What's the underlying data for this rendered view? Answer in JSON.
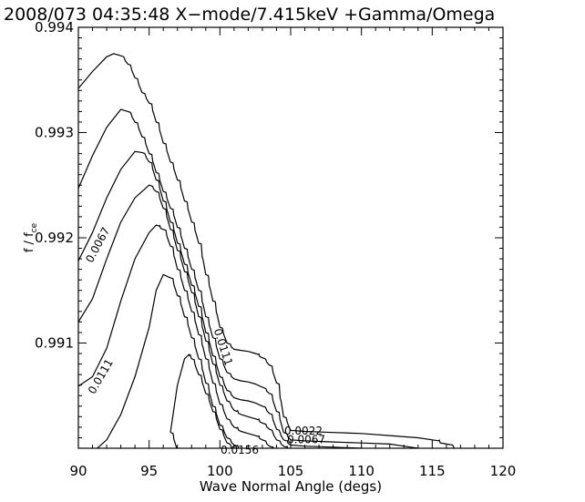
{
  "chart_data": {
    "type": "line",
    "title": "2008/073 04:35:48  X−mode/7.415keV  +Gamma/Omega",
    "xlabel": "Wave Normal Angle (degs)",
    "ylabel_main": "f",
    "ylabel_slash": " / f",
    "ylabel_sub": "ce",
    "xlim": [
      90,
      120
    ],
    "ylim": [
      0.99,
      0.994
    ],
    "x_ticks": [
      {
        "v": 90,
        "label": "90"
      },
      {
        "v": 95,
        "label": "95"
      },
      {
        "v": 100,
        "label": "100"
      },
      {
        "v": 105,
        "label": "105"
      },
      {
        "v": 110,
        "label": "110"
      },
      {
        "v": 115,
        "label": "115"
      },
      {
        "v": 120,
        "label": "120"
      }
    ],
    "y_ticks": [
      {
        "v": 0.991,
        "label": "0.991"
      },
      {
        "v": 0.992,
        "label": "0.992"
      },
      {
        "v": 0.993,
        "label": "0.993"
      },
      {
        "v": 0.994,
        "label": "0.994"
      }
    ],
    "contour_labels": [
      {
        "text": "0.0022",
        "x": 105.9,
        "y": 0.99016,
        "angle": 0
      },
      {
        "text": "0.0067",
        "x": 106.1,
        "y": 0.99008,
        "angle": 0
      },
      {
        "text": "0.0156",
        "x": 101.4,
        "y": 0.98998,
        "angle": 0
      },
      {
        "text": "0.0067",
        "x": 91.4,
        "y": 0.99193,
        "angle": -62
      },
      {
        "text": "0.0111",
        "x": 91.6,
        "y": 0.99068,
        "angle": -60
      },
      {
        "text": "0.0111",
        "x": 100.2,
        "y": 0.99096,
        "angle": 72
      }
    ],
    "series": [
      {
        "x": [
          90,
          91,
          92,
          92.5,
          93,
          93.5,
          94,
          94.5,
          95,
          95.5,
          96,
          96.5,
          97,
          97.5,
          98,
          98.5,
          99,
          99.5,
          100,
          100.5,
          101,
          101.5,
          102,
          102.5,
          103,
          103.5,
          104,
          104.5,
          105,
          106,
          108,
          110,
          112,
          114,
          115,
          116,
          117,
          117.5,
          118,
          118.2
        ],
        "y": [
          0.99342,
          0.99358,
          0.99372,
          0.99375,
          0.99373,
          0.99365,
          0.99352,
          0.99338,
          0.99328,
          0.9931,
          0.9929,
          0.99272,
          0.99255,
          0.99235,
          0.99215,
          0.99195,
          0.99165,
          0.9914,
          0.99115,
          0.991,
          0.99094,
          0.99093,
          0.99092,
          0.9909,
          0.99086,
          0.99079,
          0.99062,
          0.9903,
          0.99017,
          0.99016,
          0.99015,
          0.99014,
          0.99012,
          0.9901,
          0.99008,
          0.99004,
          0.98996,
          0.98988,
          0.98978,
          0.98968
        ]
      },
      {
        "x": [
          90,
          91,
          92,
          93,
          93.5,
          94,
          94.5,
          95,
          95.5,
          96,
          96.5,
          97,
          97.5,
          98,
          98.5,
          99,
          99.5,
          100,
          100.5,
          101,
          101.5,
          102,
          102.5,
          103,
          103.5,
          104,
          104.5,
          105,
          106,
          108,
          110,
          112,
          113,
          114,
          115,
          116,
          116.7,
          117.2
        ],
        "y": [
          0.99247,
          0.99278,
          0.99305,
          0.99322,
          0.9932,
          0.9931,
          0.99296,
          0.9928,
          0.99262,
          0.99244,
          0.99228,
          0.9921,
          0.9919,
          0.9917,
          0.9915,
          0.99125,
          0.99105,
          0.99085,
          0.99072,
          0.99066,
          0.99064,
          0.99063,
          0.99061,
          0.99058,
          0.99052,
          0.99035,
          0.99015,
          0.99008,
          0.99007,
          0.99006,
          0.99005,
          0.99004,
          0.99002,
          0.99,
          0.98996,
          0.98988,
          0.98978,
          0.98968
        ]
      },
      {
        "x": [
          90,
          91,
          92,
          93,
          94,
          94.5,
          95,
          95.5,
          96,
          96.5,
          97,
          97.5,
          98,
          98.5,
          99,
          99.5,
          100,
          100.5,
          101,
          101.5,
          102,
          102.5,
          103,
          103.5,
          104,
          104.5,
          105,
          106,
          108,
          110,
          112,
          113,
          114,
          115,
          116
        ],
        "y": [
          0.99178,
          0.99205,
          0.99238,
          0.99265,
          0.99282,
          0.99281,
          0.99272,
          0.99255,
          0.99235,
          0.99215,
          0.99195,
          0.99175,
          0.99155,
          0.99135,
          0.9911,
          0.99088,
          0.99068,
          0.99055,
          0.99048,
          0.99046,
          0.99045,
          0.99043,
          0.9904,
          0.99033,
          0.99018,
          0.99008,
          0.99003,
          0.99002,
          0.99001,
          0.99,
          0.98998,
          0.98994,
          0.98988,
          0.98978,
          0.98968
        ]
      },
      {
        "x": [
          90,
          91,
          92,
          93,
          94,
          95,
          95.5,
          96,
          96.5,
          97,
          97.5,
          98,
          98.5,
          99,
          99.5,
          100,
          100.5,
          101,
          101.5,
          102,
          102.5,
          103,
          103.5,
          104,
          104.5,
          105,
          106,
          108,
          110,
          111,
          112,
          113,
          114,
          114.7
        ],
        "y": [
          0.9912,
          0.99142,
          0.9918,
          0.99215,
          0.99238,
          0.9925,
          0.99244,
          0.99228,
          0.99208,
          0.99188,
          0.99168,
          0.99148,
          0.99125,
          0.99102,
          0.9908,
          0.9906,
          0.99045,
          0.99036,
          0.99032,
          0.9903,
          0.99028,
          0.99024,
          0.99018,
          0.99008,
          0.99002,
          0.98998,
          0.98997,
          0.98996,
          0.98994,
          0.98991,
          0.98986,
          0.9898,
          0.98972,
          0.98965
        ]
      },
      {
        "x": [
          90,
          91,
          92,
          93,
          94,
          95,
          95.5,
          96,
          96.5,
          97,
          97.5,
          98,
          98.5,
          99,
          99.5,
          100,
          100.5,
          101,
          101.5,
          102,
          102.5,
          103,
          103.5,
          104,
          104.5,
          105,
          106,
          107,
          108,
          109,
          110,
          111,
          112,
          112.8
        ],
        "y": [
          0.99059,
          0.99068,
          0.99095,
          0.9914,
          0.9918,
          0.99205,
          0.99212,
          0.99208,
          0.99192,
          0.9917,
          0.9915,
          0.9913,
          0.99108,
          0.99085,
          0.99062,
          0.99042,
          0.99028,
          0.9902,
          0.99016,
          0.99014,
          0.99012,
          0.99008,
          0.99002,
          0.98997,
          0.98994,
          0.98993,
          0.98992,
          0.98991,
          0.9899,
          0.98988,
          0.98985,
          0.9898,
          0.98973,
          0.98966
        ]
      },
      {
        "x": [
          90,
          91,
          92,
          93,
          94,
          95,
          95.5,
          96,
          96.5,
          97,
          97.5,
          98,
          98.5,
          99,
          99.5,
          100,
          100.5,
          101,
          101.5,
          102,
          102.5,
          103,
          104,
          105,
          106,
          107,
          108,
          109,
          109.8
        ],
        "y": [
          0.98992,
          0.98996,
          0.99008,
          0.99032,
          0.99068,
          0.99115,
          0.9915,
          0.99165,
          0.99162,
          0.99145,
          0.99125,
          0.99105,
          0.99085,
          0.99062,
          0.9904,
          0.99022,
          0.9901,
          0.99003,
          0.98999,
          0.98997,
          0.98996,
          0.98994,
          0.98992,
          0.98991,
          0.9899,
          0.98989,
          0.98986,
          0.9898,
          0.98968
        ]
      },
      {
        "x": [
          96.5,
          97,
          97.5,
          97.8,
          98,
          98.5,
          99,
          99.5,
          100,
          100.5,
          101,
          101.5,
          102,
          102.5,
          103,
          103.5,
          104,
          104.5,
          105,
          105.5,
          106,
          106.4
        ],
        "y": [
          0.99015,
          0.9906,
          0.99085,
          0.99089,
          0.99085,
          0.9907,
          0.99052,
          0.99035,
          0.99018,
          0.99005,
          0.98998,
          0.98994,
          0.98992,
          0.98991,
          0.9899,
          0.98989,
          0.98988,
          0.98987,
          0.98985,
          0.9898,
          0.98972,
          0.98966
        ]
      },
      {
        "x": [
          96.5,
          97,
          97.5,
          98,
          98.4
        ],
        "y": [
          0.99015,
          0.98998,
          0.98985,
          0.98974,
          0.98966
        ]
      }
    ]
  }
}
